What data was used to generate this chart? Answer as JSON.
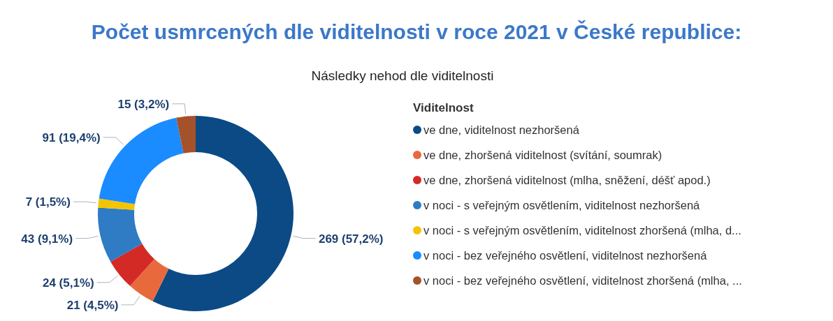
{
  "chart_data": {
    "type": "donut",
    "title": "Počet usmrcených dle viditelnosti v roce 2021 v České republice:",
    "subtitle": "Následky nehod dle viditelnosti",
    "legend_title": "Viditelnost",
    "legend": "right",
    "categories": [
      "ve dne, viditelnost nezhoršená",
      "ve dne, zhoršená viditelnost (svítání, soumrak)",
      "ve dne, zhoršená viditelnost (mlha, sněžení, déšť apod.)",
      "v noci - s veřejným osvětlením, viditelnost nezhoršená",
      "v noci - s veřejným osvětlením, viditelnost zhoršená (mlha, d...",
      "v noci - bez veřejného osvětlení, viditelnost nezhoršená",
      "v noci - bez veřejného osvětlení, viditelnost zhoršená (mlha, ..."
    ],
    "values": [
      269,
      21,
      24,
      43,
      7,
      91,
      15
    ],
    "colors": [
      "#0b4a85",
      "#e8693c",
      "#d42a25",
      "#2f7bc4",
      "#f5c400",
      "#1a8cff",
      "#a5522b"
    ],
    "value_labels": [
      "269 (57,2%)",
      "21 (4,5%)",
      "24 (5,1%)",
      "43 (9,1%)",
      "7 (1,5%)",
      "91 (19,4%)",
      "15 (3,2%)"
    ]
  }
}
